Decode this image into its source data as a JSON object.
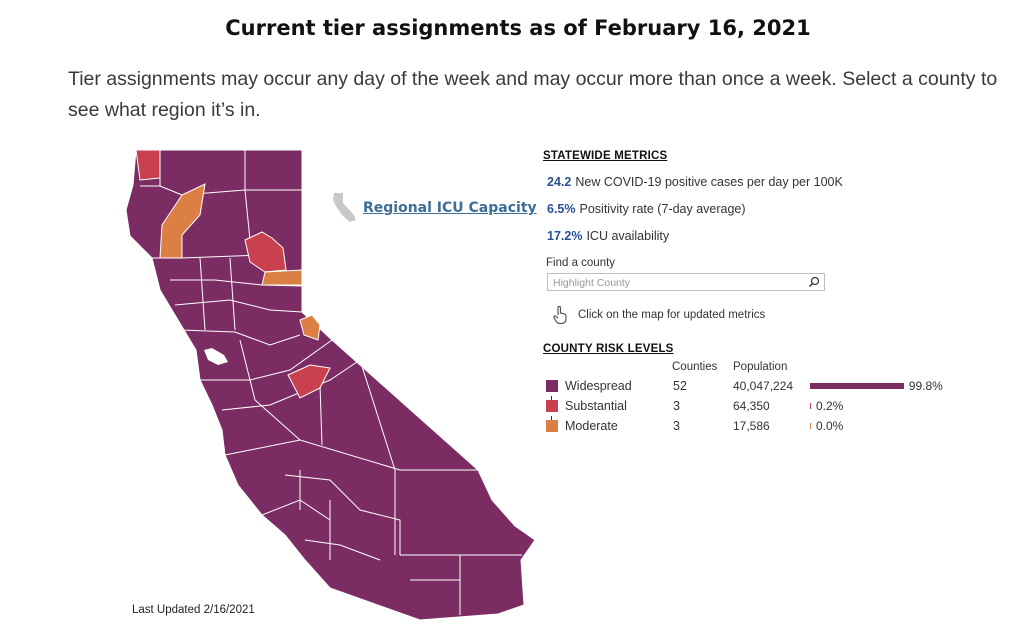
{
  "page": {
    "title": "Current tier assignments as of February 16, 2021",
    "intro": "Tier assignments may occur any day of the week and may occur more than once a week. Select a county to see what region it’s in."
  },
  "map": {
    "last_updated": "Last Updated 2/16/2021",
    "icu_link": "Regional ICU Capacity",
    "colors": {
      "widespread": "#7b2d63",
      "substantial": "#c9414e",
      "moderate": "#dc7f44",
      "border": "#ffffff"
    }
  },
  "statewide": {
    "heading": "STATEWIDE METRICS",
    "metrics": [
      {
        "value": "24.2",
        "label": "New COVID-19 positive cases per day per 100K"
      },
      {
        "value": "6.5%",
        "label": "Positivity rate (7-day average)"
      },
      {
        "value": "17.2%",
        "label": "ICU availability"
      }
    ],
    "find_label": "Find a county",
    "search_placeholder": "Highlight County",
    "hint": "Click on the map for updated metrics"
  },
  "risk": {
    "heading": "COUNTY RISK LEVELS",
    "col_counties": "Counties",
    "col_population": "Population",
    "rows": [
      {
        "label": "Widespread",
        "counties": "52",
        "population": "40,047,224",
        "share": 99.8,
        "pct_label": "99.8%",
        "color": "#7b2d63"
      },
      {
        "label": "Substantial",
        "counties": "3",
        "population": "64,350",
        "share": 0.2,
        "pct_label": "0.2%",
        "color": "#c9414e"
      },
      {
        "label": "Moderate",
        "counties": "3",
        "population": "17,586",
        "share": 0.0,
        "pct_label": "0.0%",
        "color": "#dc7f44"
      }
    ]
  }
}
